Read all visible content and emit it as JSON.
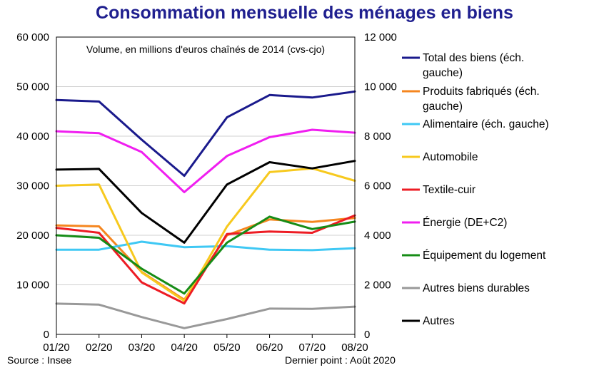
{
  "chart_data": {
    "type": "line",
    "title": "Consommation mensuelle des ménages en biens",
    "subtitle": "Volume, en millions d'euros chaînés de 2014 (cvs-cjo)",
    "categories": [
      "01/20",
      "02/20",
      "03/20",
      "04/20",
      "05/20",
      "06/20",
      "07/20",
      "08/20"
    ],
    "y_left": {
      "min": 0,
      "max": 60000,
      "step": 10000,
      "ticks": [
        "0",
        "10 000",
        "20 000",
        "30 000",
        "40 000",
        "50 000",
        "60 000"
      ]
    },
    "y_right": {
      "min": 0,
      "max": 12000,
      "step": 2000,
      "ticks": [
        "0",
        "2 000",
        "4 000",
        "6 000",
        "8 000",
        "10 000",
        "12 000"
      ]
    },
    "grid": "horizontal",
    "legend_position": "right",
    "series": [
      {
        "name": "Total des biens (éch. gauche)",
        "axis": "left",
        "color": "#1a1a8c",
        "values": [
          47300,
          47000,
          39300,
          32000,
          43800,
          48300,
          47800,
          49000
        ]
      },
      {
        "name": "Produits fabriqués (éch. gauche)",
        "axis": "left",
        "color": "#f5861f",
        "values": [
          22000,
          21800,
          12600,
          7000,
          20000,
          23200,
          22700,
          23500
        ]
      },
      {
        "name": "Alimentaire (éch. gauche)",
        "axis": "left",
        "color": "#3fc8f4",
        "values": [
          17100,
          17100,
          18700,
          17600,
          17800,
          17100,
          17000,
          17400
        ]
      },
      {
        "name": "Automobile",
        "axis": "right",
        "color": "#f7c91e",
        "values": [
          6000,
          6050,
          2500,
          1350,
          4350,
          6550,
          6700,
          6200
        ]
      },
      {
        "name": "Textile-cuir",
        "axis": "right",
        "color": "#ed1c24",
        "values": [
          4300,
          4100,
          2100,
          1250,
          4050,
          4150,
          4100,
          4800
        ]
      },
      {
        "name": "Énergie (DE+C2)",
        "axis": "left",
        "color": "#f01ef0",
        "values": [
          41000,
          40600,
          36800,
          28700,
          36000,
          39800,
          41300,
          40700
        ]
      },
      {
        "name": "Équipement du logement",
        "axis": "right",
        "color": "#168c16",
        "values": [
          4000,
          3900,
          2650,
          1650,
          3700,
          4750,
          4250,
          4550
        ]
      },
      {
        "name": "Autres biens durables",
        "axis": "right",
        "color": "#999999",
        "values": [
          1240,
          1200,
          700,
          250,
          620,
          1040,
          1030,
          1120
        ]
      },
      {
        "name": "Autres",
        "axis": "right",
        "color": "#000000",
        "values": [
          6650,
          6680,
          4900,
          3700,
          6050,
          6950,
          6700,
          7000
        ]
      }
    ]
  },
  "footer": {
    "source": "Source : Insee",
    "last_point": "Dernier point : Août 2020"
  }
}
